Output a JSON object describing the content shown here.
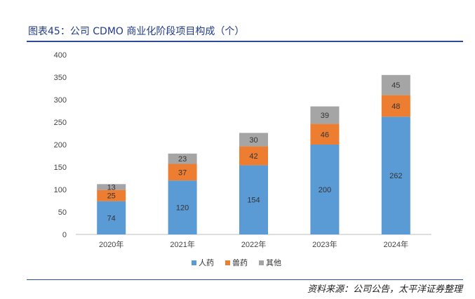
{
  "figure": {
    "title": "图表45：公司 CDMO 商业化阶段项目构成（个）",
    "source": "资料来源：公司公告，太平洋证券整理"
  },
  "chart_data": {
    "type": "bar",
    "stacked": true,
    "categories": [
      "2020年",
      "2021年",
      "2022年",
      "2023年",
      "2024年"
    ],
    "series": [
      {
        "name": "人药",
        "color": "#5b9bd5",
        "values": [
          74,
          120,
          154,
          200,
          262
        ]
      },
      {
        "name": "兽药",
        "color": "#ed7d31",
        "values": [
          25,
          37,
          42,
          46,
          48
        ]
      },
      {
        "name": "其他",
        "color": "#a5a5a5",
        "values": [
          13,
          23,
          30,
          39,
          45
        ]
      }
    ],
    "ylim": [
      0,
      400
    ],
    "yticks": [
      0,
      50,
      100,
      150,
      200,
      250,
      300,
      350,
      400
    ],
    "grid": false,
    "legend": "bottom"
  }
}
